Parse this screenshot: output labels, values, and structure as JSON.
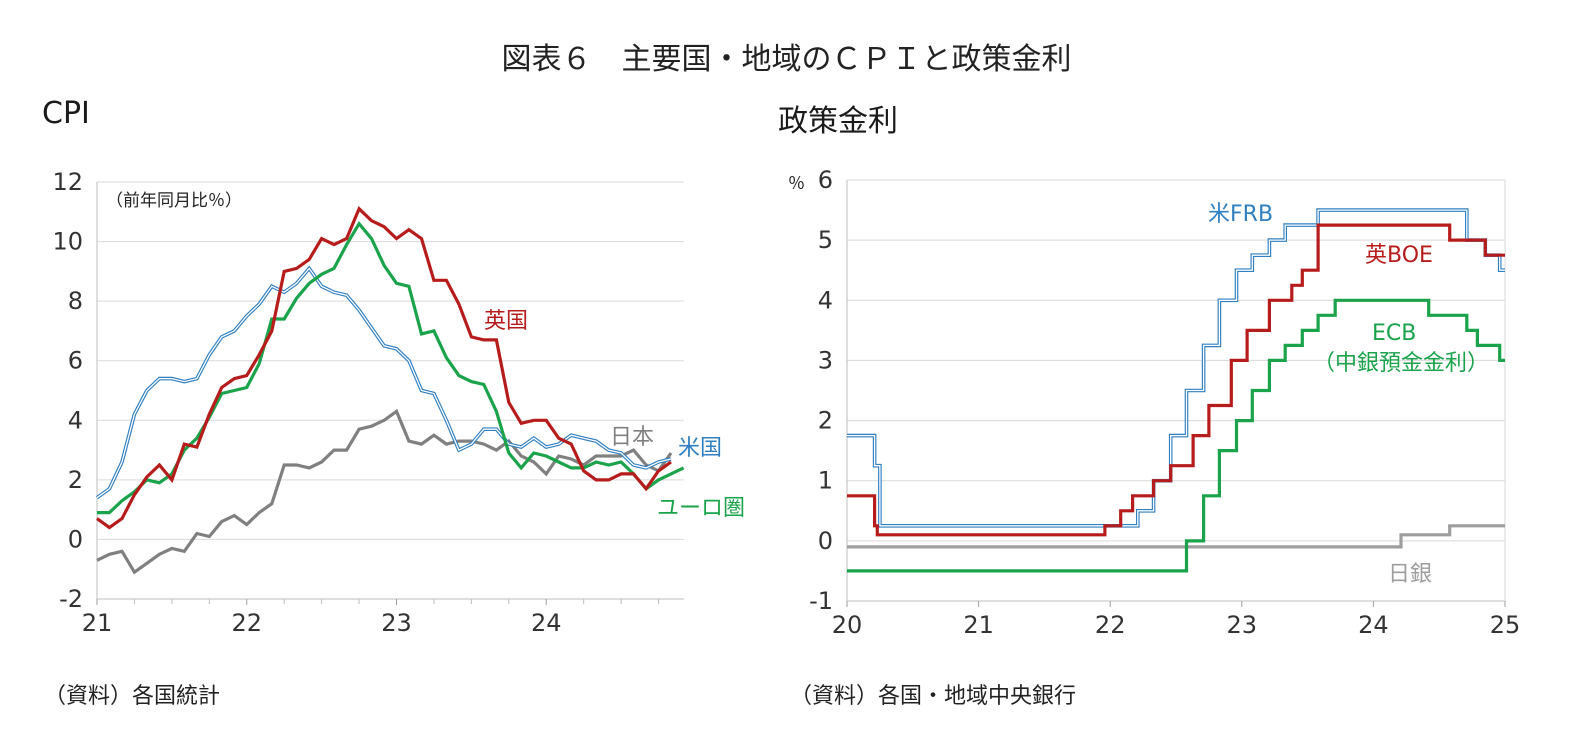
{
  "figure_title": "図表６　主要国・地域のＣＰＩと政策金利",
  "chart_data": [
    {
      "type": "line",
      "title": "CPI",
      "unit_note": "（前年同月比％）",
      "x_ticks": [
        "21",
        "22",
        "23",
        "24"
      ],
      "xlim": [
        2021.0,
        2024.92
      ],
      "ylim": [
        -2,
        12
      ],
      "y_ticks": [
        "12",
        "10",
        "8",
        "6",
        "4",
        "2",
        "0",
        "-2"
      ],
      "grid": true,
      "series": [
        {
          "name": "米国",
          "color": "#2f7fc1",
          "style": "double",
          "x": [
            2021.0,
            2021.083,
            2021.167,
            2021.25,
            2021.333,
            2021.417,
            2021.5,
            2021.583,
            2021.667,
            2021.75,
            2021.833,
            2021.917,
            2022.0,
            2022.083,
            2022.167,
            2022.25,
            2022.333,
            2022.417,
            2022.5,
            2022.583,
            2022.667,
            2022.75,
            2022.833,
            2022.917,
            2023.0,
            2023.083,
            2023.167,
            2023.25,
            2023.333,
            2023.417,
            2023.5,
            2023.583,
            2023.667,
            2023.75,
            2023.833,
            2023.917,
            2024.0,
            2024.083,
            2024.167,
            2024.25,
            2024.333,
            2024.417,
            2024.5,
            2024.583,
            2024.667,
            2024.75,
            2024.833
          ],
          "values": [
            1.4,
            1.7,
            2.6,
            4.2,
            5.0,
            5.4,
            5.4,
            5.3,
            5.4,
            6.2,
            6.8,
            7.0,
            7.5,
            7.9,
            8.5,
            8.3,
            8.6,
            9.1,
            8.5,
            8.3,
            8.2,
            7.7,
            7.1,
            6.5,
            6.4,
            6.0,
            5.0,
            4.9,
            4.0,
            3.0,
            3.2,
            3.7,
            3.7,
            3.2,
            3.1,
            3.4,
            3.1,
            3.2,
            3.5,
            3.4,
            3.3,
            3.0,
            2.9,
            2.5,
            2.4,
            2.6,
            2.7
          ]
        },
        {
          "name": "英国",
          "color": "#b71c1c",
          "style": "solid",
          "x": [
            2021.0,
            2021.083,
            2021.167,
            2021.25,
            2021.333,
            2021.417,
            2021.5,
            2021.583,
            2021.667,
            2021.75,
            2021.833,
            2021.917,
            2022.0,
            2022.083,
            2022.167,
            2022.25,
            2022.333,
            2022.417,
            2022.5,
            2022.583,
            2022.667,
            2022.75,
            2022.833,
            2022.917,
            2023.0,
            2023.083,
            2023.167,
            2023.25,
            2023.333,
            2023.417,
            2023.5,
            2023.583,
            2023.667,
            2023.75,
            2023.833,
            2023.917,
            2024.0,
            2024.083,
            2024.167,
            2024.25,
            2024.333,
            2024.417,
            2024.5,
            2024.583,
            2024.667,
            2024.75,
            2024.833
          ],
          "values": [
            0.7,
            0.4,
            0.7,
            1.5,
            2.1,
            2.5,
            2.0,
            3.2,
            3.1,
            4.2,
            5.1,
            5.4,
            5.5,
            6.2,
            7.0,
            9.0,
            9.1,
            9.4,
            10.1,
            9.9,
            10.1,
            11.1,
            10.7,
            10.5,
            10.1,
            10.4,
            10.1,
            8.7,
            8.7,
            7.9,
            6.8,
            6.7,
            6.7,
            4.6,
            3.9,
            4.0,
            4.0,
            3.4,
            3.2,
            2.3,
            2.0,
            2.0,
            2.2,
            2.2,
            1.7,
            2.3,
            2.6
          ]
        },
        {
          "name": "ユーロ圏",
          "color": "#1aa34a",
          "style": "solid",
          "x": [
            2021.0,
            2021.083,
            2021.167,
            2021.25,
            2021.333,
            2021.417,
            2021.5,
            2021.583,
            2021.667,
            2021.75,
            2021.833,
            2021.917,
            2022.0,
            2022.083,
            2022.167,
            2022.25,
            2022.333,
            2022.417,
            2022.5,
            2022.583,
            2022.667,
            2022.75,
            2022.833,
            2022.917,
            2023.0,
            2023.083,
            2023.167,
            2023.25,
            2023.333,
            2023.417,
            2023.5,
            2023.583,
            2023.667,
            2023.75,
            2023.833,
            2023.917,
            2024.0,
            2024.083,
            2024.167,
            2024.25,
            2024.333,
            2024.417,
            2024.5,
            2024.583,
            2024.667,
            2024.75,
            2024.833,
            2024.917
          ],
          "values": [
            0.9,
            0.9,
            1.3,
            1.6,
            2.0,
            1.9,
            2.2,
            3.0,
            3.4,
            4.1,
            4.9,
            5.0,
            5.1,
            5.9,
            7.4,
            7.4,
            8.1,
            8.6,
            8.9,
            9.1,
            9.9,
            10.6,
            10.1,
            9.2,
            8.6,
            8.5,
            6.9,
            7.0,
            6.1,
            5.5,
            5.3,
            5.2,
            4.3,
            2.9,
            2.4,
            2.9,
            2.8,
            2.6,
            2.4,
            2.4,
            2.6,
            2.5,
            2.6,
            2.2,
            1.7,
            2.0,
            2.2,
            2.4
          ]
        },
        {
          "name": "日本",
          "color": "#808080",
          "style": "solid",
          "x": [
            2021.0,
            2021.083,
            2021.167,
            2021.25,
            2021.333,
            2021.417,
            2021.5,
            2021.583,
            2021.667,
            2021.75,
            2021.833,
            2021.917,
            2022.0,
            2022.083,
            2022.167,
            2022.25,
            2022.333,
            2022.417,
            2022.5,
            2022.583,
            2022.667,
            2022.75,
            2022.833,
            2022.917,
            2023.0,
            2023.083,
            2023.167,
            2023.25,
            2023.333,
            2023.417,
            2023.5,
            2023.583,
            2023.667,
            2023.75,
            2023.833,
            2023.917,
            2024.0,
            2024.083,
            2024.167,
            2024.25,
            2024.333,
            2024.417,
            2024.5,
            2024.583,
            2024.667,
            2024.75,
            2024.833
          ],
          "values": [
            -0.7,
            -0.5,
            -0.4,
            -1.1,
            -0.8,
            -0.5,
            -0.3,
            -0.4,
            0.2,
            0.1,
            0.6,
            0.8,
            0.5,
            0.9,
            1.2,
            2.5,
            2.5,
            2.4,
            2.6,
            3.0,
            3.0,
            3.7,
            3.8,
            4.0,
            4.3,
            3.3,
            3.2,
            3.5,
            3.2,
            3.3,
            3.3,
            3.2,
            3.0,
            3.3,
            2.8,
            2.6,
            2.2,
            2.8,
            2.7,
            2.5,
            2.8,
            2.8,
            2.8,
            3.0,
            2.5,
            2.3,
            2.9
          ]
        }
      ],
      "labels": {
        "jp": "日本",
        "us": "米国",
        "uk": "英国",
        "ez": "ユーロ圏"
      },
      "source": "（資料）各国統計"
    },
    {
      "type": "line",
      "title": "政策金利",
      "unit_note": "％",
      "x_ticks": [
        "20",
        "21",
        "22",
        "23",
        "24",
        "25"
      ],
      "xlim": [
        2020.0,
        2025.0
      ],
      "ylim": [
        -1,
        6
      ],
      "y_ticks": [
        "6",
        "5",
        "4",
        "3",
        "2",
        "1",
        "0",
        "-1"
      ],
      "grid": true,
      "series": [
        {
          "name": "米FRB",
          "color": "#2f7fc1",
          "style": "double",
          "x": [
            2020.0,
            2020.21,
            2020.21,
            2020.25,
            2020.25,
            2022.21,
            2022.21,
            2022.33,
            2022.33,
            2022.46,
            2022.46,
            2022.58,
            2022.58,
            2022.71,
            2022.71,
            2022.83,
            2022.83,
            2022.96,
            2022.96,
            2023.08,
            2023.08,
            2023.21,
            2023.21,
            2023.33,
            2023.33,
            2023.58,
            2023.58,
            2024.71,
            2024.71,
            2024.85,
            2024.85,
            2024.96,
            2024.96,
            2025.0
          ],
          "values": [
            1.75,
            1.75,
            1.25,
            1.25,
            0.25,
            0.25,
            0.5,
            0.5,
            1.0,
            1.0,
            1.75,
            1.75,
            2.5,
            2.5,
            3.25,
            3.25,
            4.0,
            4.0,
            4.5,
            4.5,
            4.75,
            4.75,
            5.0,
            5.0,
            5.25,
            5.25,
            5.5,
            5.5,
            5.0,
            5.0,
            4.75,
            4.75,
            4.5,
            4.5
          ]
        },
        {
          "name": "英BOE",
          "color": "#b71c1c",
          "style": "solid",
          "x": [
            2020.0,
            2020.21,
            2020.21,
            2020.23,
            2020.23,
            2021.96,
            2021.96,
            2022.08,
            2022.08,
            2022.17,
            2022.17,
            2022.33,
            2022.33,
            2022.46,
            2022.46,
            2022.63,
            2022.63,
            2022.75,
            2022.75,
            2022.92,
            2022.92,
            2023.04,
            2023.04,
            2023.21,
            2023.21,
            2023.38,
            2023.38,
            2023.46,
            2023.46,
            2023.58,
            2023.58,
            2024.58,
            2024.58,
            2024.85,
            2024.85,
            2025.0
          ],
          "values": [
            0.75,
            0.75,
            0.25,
            0.25,
            0.1,
            0.1,
            0.25,
            0.25,
            0.5,
            0.5,
            0.75,
            0.75,
            1.0,
            1.0,
            1.25,
            1.25,
            1.75,
            1.75,
            2.25,
            2.25,
            3.0,
            3.0,
            3.5,
            3.5,
            4.0,
            4.0,
            4.25,
            4.25,
            4.5,
            4.5,
            5.25,
            5.25,
            5.0,
            5.0,
            4.75,
            4.75
          ]
        },
        {
          "name": "ECB",
          "name_line2": "（中銀預金金利）",
          "color": "#1aa34a",
          "style": "solid",
          "x": [
            2020.0,
            2022.58,
            2022.58,
            2022.71,
            2022.71,
            2022.83,
            2022.83,
            2022.96,
            2022.96,
            2023.08,
            2023.08,
            2023.21,
            2023.21,
            2023.33,
            2023.33,
            2023.46,
            2023.46,
            2023.58,
            2023.58,
            2023.71,
            2023.71,
            2024.42,
            2024.42,
            2024.71,
            2024.71,
            2024.79,
            2024.79,
            2024.96,
            2024.96,
            2025.0
          ],
          "values": [
            -0.5,
            -0.5,
            0.0,
            0.0,
            0.75,
            0.75,
            1.5,
            1.5,
            2.0,
            2.0,
            2.5,
            2.5,
            3.0,
            3.0,
            3.25,
            3.25,
            3.5,
            3.5,
            3.75,
            3.75,
            4.0,
            4.0,
            3.75,
            3.75,
            3.5,
            3.5,
            3.25,
            3.25,
            3.0,
            3.0
          ]
        },
        {
          "name": "日銀",
          "color": "#9e9e9e",
          "style": "solid",
          "x": [
            2020.0,
            2024.21,
            2024.21,
            2024.58,
            2024.58,
            2025.0
          ],
          "values": [
            -0.1,
            -0.1,
            0.1,
            0.1,
            0.25,
            0.25
          ]
        }
      ],
      "source": "（資料）各国・地域中央銀行"
    }
  ]
}
